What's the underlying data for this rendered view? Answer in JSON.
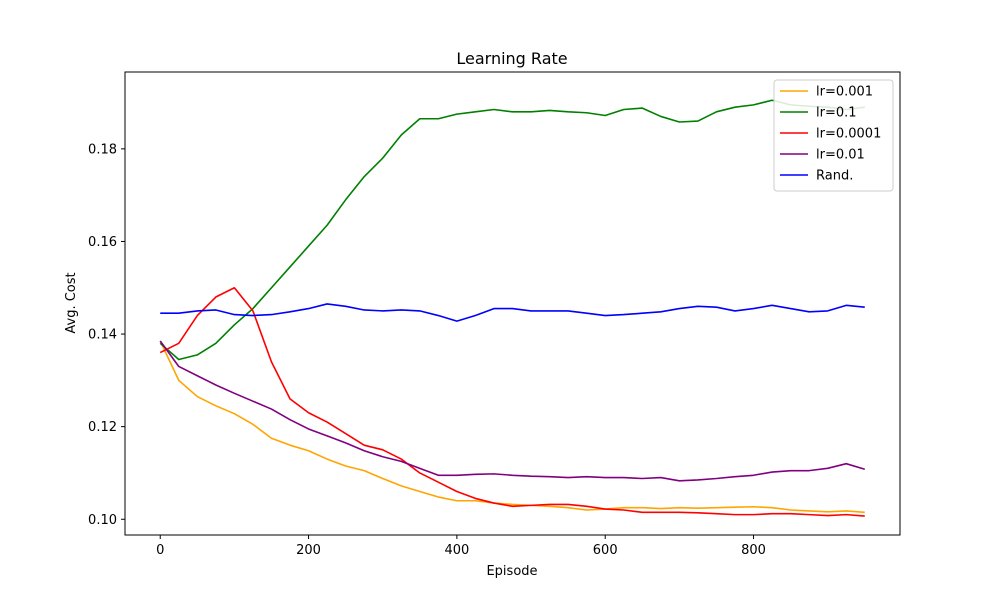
{
  "chart_data": {
    "type": "line",
    "title": "Learning Rate",
    "xlabel": "Episode",
    "ylabel": "Avg. Cost",
    "xlim": [
      -47.5,
      997.5
    ],
    "ylim": [
      0.0966,
      0.1966
    ],
    "x_ticks": [
      0,
      200,
      400,
      600,
      800
    ],
    "x_tick_labels": [
      "0",
      "200",
      "400",
      "600",
      "800"
    ],
    "y_ticks": [
      0.1,
      0.12,
      0.14,
      0.16,
      0.18
    ],
    "y_tick_labels": [
      "0.10",
      "0.12",
      "0.14",
      "0.16",
      "0.18"
    ],
    "grid": false,
    "legend_position": "top-right",
    "x": [
      0,
      25,
      50,
      75,
      100,
      125,
      150,
      175,
      200,
      225,
      250,
      275,
      300,
      325,
      350,
      375,
      400,
      425,
      450,
      475,
      500,
      525,
      550,
      575,
      600,
      625,
      650,
      675,
      700,
      725,
      750,
      775,
      800,
      825,
      850,
      875,
      900,
      925,
      950
    ],
    "series": [
      {
        "name": "lr=0.001",
        "color": "#ffa500",
        "values": [
          0.1385,
          0.13,
          0.1265,
          0.1245,
          0.1228,
          0.1205,
          0.1175,
          0.116,
          0.1148,
          0.113,
          0.1115,
          0.1105,
          0.1088,
          0.1072,
          0.106,
          0.1048,
          0.104,
          0.104,
          0.1035,
          0.1032,
          0.103,
          0.1028,
          0.1025,
          0.102,
          0.1022,
          0.1025,
          0.1025,
          0.1023,
          0.1025,
          0.1024,
          0.1025,
          0.1026,
          0.1027,
          0.1025,
          0.102,
          0.1018,
          0.1016,
          0.1018,
          0.1015
        ]
      },
      {
        "name": "lr=0.1",
        "color": "#008000",
        "values": [
          0.138,
          0.1345,
          0.1355,
          0.138,
          0.142,
          0.1455,
          0.15,
          0.1545,
          0.159,
          0.1635,
          0.169,
          0.174,
          0.178,
          0.183,
          0.1865,
          0.1865,
          0.1875,
          0.188,
          0.1885,
          0.188,
          0.188,
          0.1883,
          0.188,
          0.1878,
          0.1872,
          0.1885,
          0.1888,
          0.187,
          0.1858,
          0.186,
          0.188,
          0.189,
          0.1895,
          0.1905,
          0.1895,
          0.1892,
          0.189,
          0.1885,
          0.189
        ]
      },
      {
        "name": "lr=0.0001",
        "color": "#ff0000",
        "values": [
          0.136,
          0.138,
          0.144,
          0.148,
          0.15,
          0.145,
          0.134,
          0.126,
          0.123,
          0.121,
          0.1185,
          0.116,
          0.115,
          0.113,
          0.11,
          0.108,
          0.106,
          0.1045,
          0.1035,
          0.1028,
          0.103,
          0.1032,
          0.1032,
          0.1028,
          0.1022,
          0.102,
          0.1015,
          0.1015,
          0.1015,
          0.1014,
          0.1012,
          0.101,
          0.101,
          0.1012,
          0.1012,
          0.101,
          0.1008,
          0.101,
          0.1007
        ]
      },
      {
        "name": "lr=0.01",
        "color": "#800080",
        "values": [
          0.1385,
          0.133,
          0.131,
          0.129,
          0.1272,
          0.1255,
          0.1238,
          0.1215,
          0.1195,
          0.118,
          0.1165,
          0.1148,
          0.1135,
          0.1125,
          0.111,
          0.1095,
          0.1095,
          0.1097,
          0.1098,
          0.1095,
          0.1093,
          0.1092,
          0.109,
          0.1092,
          0.109,
          0.109,
          0.1088,
          0.109,
          0.1083,
          0.1085,
          0.1088,
          0.1092,
          0.1095,
          0.1102,
          0.1105,
          0.1105,
          0.111,
          0.112,
          0.1108
        ]
      },
      {
        "name": "Rand.",
        "color": "#0000ff",
        "values": [
          0.1445,
          0.1445,
          0.145,
          0.1452,
          0.1442,
          0.144,
          0.1442,
          0.1448,
          0.1455,
          0.1465,
          0.146,
          0.1452,
          0.145,
          0.1452,
          0.145,
          0.144,
          0.1428,
          0.144,
          0.1455,
          0.1455,
          0.145,
          0.145,
          0.145,
          0.1445,
          0.144,
          0.1442,
          0.1445,
          0.1448,
          0.1455,
          0.146,
          0.1458,
          0.145,
          0.1455,
          0.1462,
          0.1455,
          0.1448,
          0.145,
          0.1462,
          0.1458
        ]
      }
    ]
  }
}
